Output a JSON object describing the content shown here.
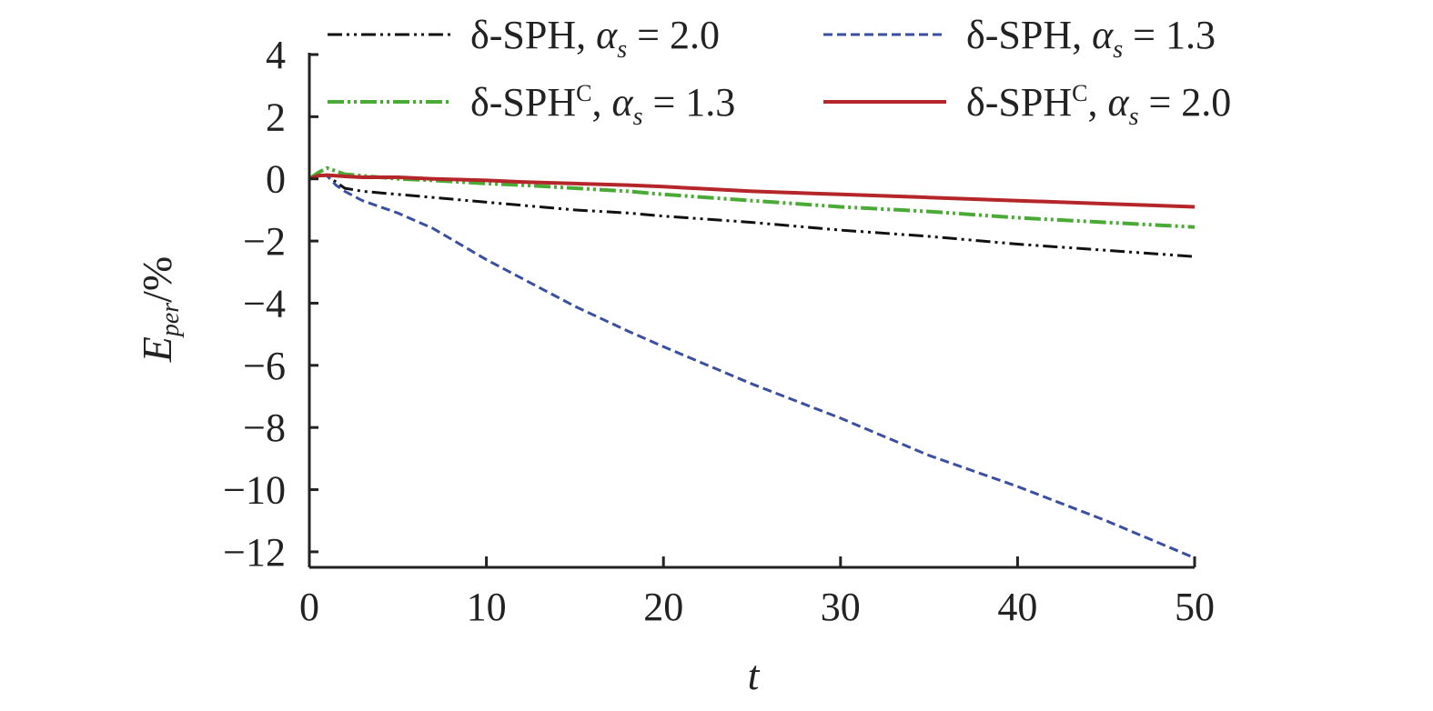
{
  "chart_data": {
    "type": "line",
    "title": "",
    "xlabel": "t",
    "ylabel": {
      "main": "E",
      "sub": "per",
      "unit": "/%"
    },
    "xlim": [
      0,
      50
    ],
    "ylim": [
      -12.5,
      4
    ],
    "xticks": [
      0,
      10,
      20,
      30,
      40,
      50
    ],
    "xtick_labels": [
      "0",
      "10",
      "20",
      "30",
      "40",
      "50"
    ],
    "yticks": [
      4,
      2,
      0,
      -2,
      -4,
      -6,
      -8,
      -10,
      -12
    ],
    "ytick_labels": [
      "4",
      "2",
      "0",
      "−2",
      "−4",
      "−6",
      "−8",
      "−10",
      "−12"
    ],
    "grid": false,
    "legend_position": "top",
    "series": [
      {
        "name": "δ-SPH, α_s = 2.0",
        "label": {
          "prefix": "δ-SPH",
          "sup": "",
          "alpha": "α",
          "sub": "s",
          "value": " = 2.0"
        },
        "color": "#111111",
        "dash": "16,5,3,5,3,5",
        "width": 3,
        "x": [
          0,
          0.5,
          1,
          1.5,
          2,
          3,
          4,
          5,
          7,
          10,
          12,
          15,
          18,
          20,
          25,
          30,
          35,
          40,
          45,
          50
        ],
        "y": [
          0,
          0.1,
          0.1,
          -0.1,
          -0.3,
          -0.4,
          -0.45,
          -0.5,
          -0.6,
          -0.75,
          -0.85,
          -1.0,
          -1.1,
          -1.2,
          -1.4,
          -1.65,
          -1.85,
          -2.1,
          -2.3,
          -2.5
        ]
      },
      {
        "name": "δ-SPH, α_s = 1.3",
        "label": {
          "prefix": "δ-SPH",
          "sup": "",
          "alpha": "α",
          "sub": "s",
          "value": " = 1.3"
        },
        "color": "#3a4fa0",
        "dash": "10,5",
        "width": 3,
        "x": [
          0,
          0.5,
          1,
          1.5,
          2,
          3,
          4,
          5,
          7,
          10,
          12,
          15,
          18,
          20,
          25,
          30,
          35,
          40,
          45,
          50
        ],
        "y": [
          0,
          0.1,
          0.1,
          -0.2,
          -0.4,
          -0.7,
          -0.9,
          -1.1,
          -1.6,
          -2.6,
          -3.2,
          -4.1,
          -4.9,
          -5.4,
          -6.6,
          -7.7,
          -8.9,
          -9.9,
          -11.0,
          -12.2
        ]
      },
      {
        "name": "δ-SPHC, α_s = 1.3",
        "label": {
          "prefix": "δ-SPH",
          "sup": "C",
          "alpha": "α",
          "sub": "s",
          "value": " = 1.3"
        },
        "color": "#4aaa36",
        "dash": "18,4,3,4,3,4",
        "width": 4,
        "x": [
          0,
          0.5,
          1,
          1.5,
          2,
          3,
          4,
          5,
          7,
          10,
          12,
          15,
          18,
          20,
          25,
          30,
          35,
          40,
          45,
          50
        ],
        "y": [
          0,
          0.2,
          0.35,
          0.25,
          0.15,
          0.1,
          0.05,
          0.0,
          -0.05,
          -0.15,
          -0.2,
          -0.3,
          -0.4,
          -0.5,
          -0.7,
          -0.9,
          -1.05,
          -1.25,
          -1.4,
          -1.55
        ]
      },
      {
        "name": "δ-SPHC, α_s = 2.0",
        "label": {
          "prefix": "δ-SPH",
          "sup": "C",
          "alpha": "α",
          "sub": "s",
          "value": " = 2.0"
        },
        "color": "#b5262a",
        "dash": "",
        "width": 4,
        "x": [
          0,
          0.5,
          1,
          1.5,
          2,
          3,
          4,
          5,
          7,
          10,
          12,
          15,
          18,
          20,
          25,
          30,
          35,
          40,
          45,
          50
        ],
        "y": [
          0,
          0.1,
          0.12,
          0.1,
          0.08,
          0.05,
          0.05,
          0.05,
          0.0,
          -0.05,
          -0.1,
          -0.15,
          -0.2,
          -0.25,
          -0.4,
          -0.5,
          -0.6,
          -0.7,
          -0.8,
          -0.9
        ]
      }
    ]
  }
}
